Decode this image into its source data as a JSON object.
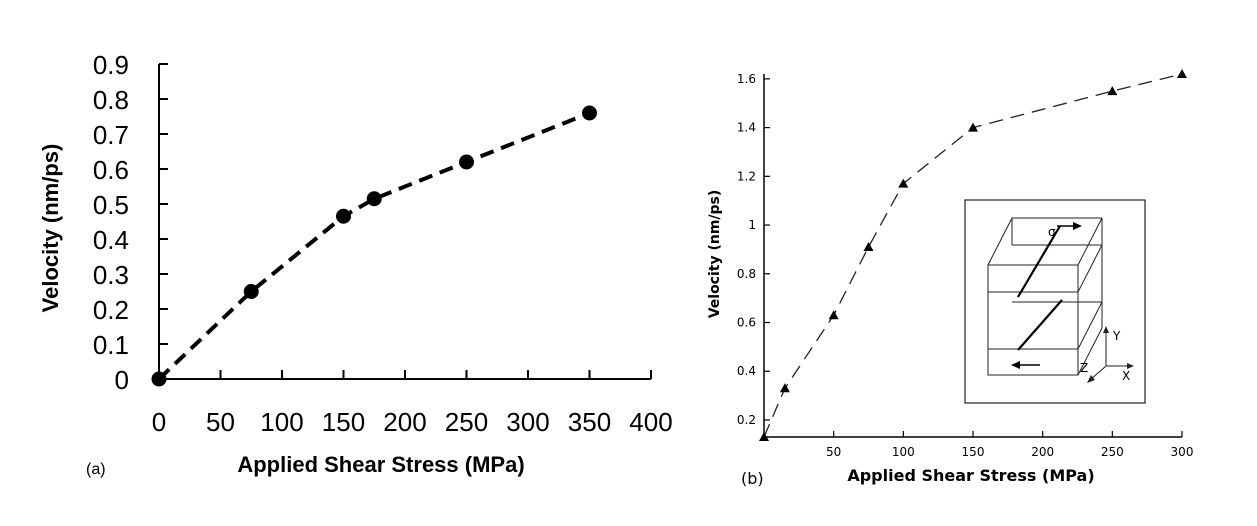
{
  "chart_data": [
    {
      "panel_label": "(a)",
      "type": "line",
      "title": "",
      "xlabel": "Applied Shear Stress (MPa)",
      "ylabel": "Velocity (nm/ps)",
      "xlim": [
        0,
        400
      ],
      "ylim": [
        0,
        0.9
      ],
      "xticks": [
        "0",
        "50",
        "100",
        "150",
        "200",
        "250",
        "300",
        "350",
        "400"
      ],
      "yticks": [
        "0",
        "0.1",
        "0.2",
        "0.3",
        "0.4",
        "0.5",
        "0.6",
        "0.7",
        "0.8",
        "0.9"
      ],
      "grid": false,
      "series": [
        {
          "name": "Velocity",
          "marker": "circle",
          "line": "dashed",
          "x": [
            0,
            75,
            150,
            175,
            250,
            350
          ],
          "y": [
            0.0,
            0.25,
            0.465,
            0.515,
            0.62,
            0.76
          ]
        }
      ]
    },
    {
      "panel_label": "(b)",
      "type": "line",
      "title": "",
      "xlabel": "Applied Shear Stress (MPa)",
      "ylabel": "Velocity (nm/ps)",
      "xlim": [
        0,
        300
      ],
      "ylim": [
        0.13,
        1.62
      ],
      "xticks": [
        "50",
        "100",
        "150",
        "200",
        "250",
        "300"
      ],
      "yticks": [
        "0.2",
        "0.4",
        "0.6",
        "0.8",
        "1",
        "1.2",
        "1.4",
        "1.6"
      ],
      "grid": false,
      "series": [
        {
          "name": "Velocity",
          "marker": "triangle",
          "line": "dashed",
          "x": [
            0,
            15,
            50,
            75,
            100,
            150,
            250,
            300
          ],
          "y": [
            0.13,
            0.33,
            0.63,
            0.91,
            1.17,
            1.4,
            1.55,
            1.62
          ]
        }
      ],
      "inset": {
        "stress_label": "σ",
        "axis_labels": {
          "y": "Y",
          "z": "Z",
          "x": "X"
        }
      }
    }
  ]
}
